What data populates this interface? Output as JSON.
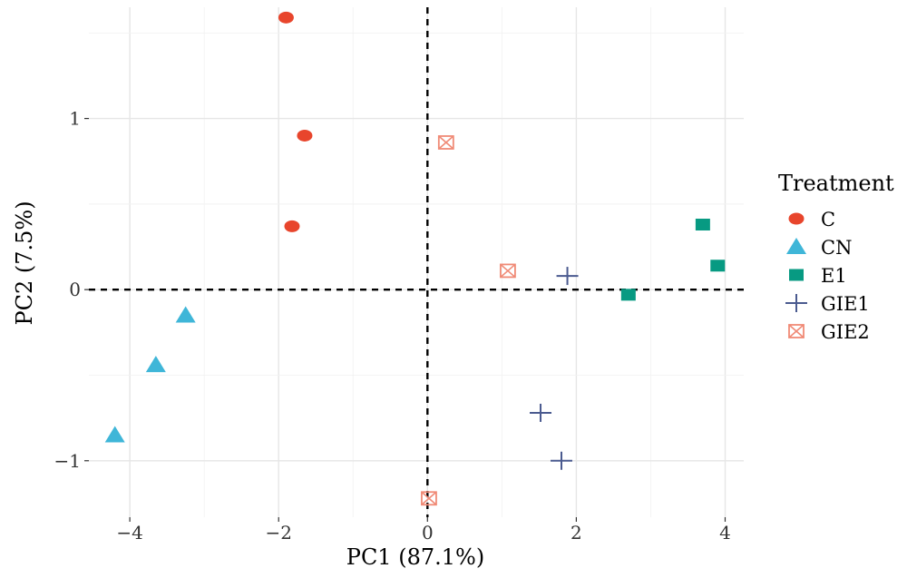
{
  "chart_data": {
    "type": "scatter",
    "title": "",
    "xlabel": "PC1 (87.1%)",
    "ylabel": "PC2 (7.5%)",
    "xlim": [
      -4.55,
      4.25
    ],
    "ylim": [
      -1.33,
      1.65
    ],
    "xticks": [
      -4,
      -2,
      0,
      2,
      4
    ],
    "xtick_labels": [
      "−4",
      "−2",
      "0",
      "2",
      "4"
    ],
    "yticks": [
      -1,
      0,
      1
    ],
    "ytick_labels": [
      "−1",
      "0",
      "1"
    ],
    "grid": true,
    "reference_lines": {
      "x": 0,
      "y": 0,
      "style": "dashed"
    },
    "legend": {
      "title": "Treatment",
      "position": "right"
    },
    "series": [
      {
        "name": "C",
        "marker": "circle",
        "color": "#E8452C",
        "points": [
          [
            -1.9,
            1.59
          ],
          [
            -1.65,
            0.9
          ],
          [
            -1.82,
            0.37
          ]
        ]
      },
      {
        "name": "CN",
        "marker": "triangle",
        "color": "#3FB6D8",
        "points": [
          [
            -3.25,
            -0.15
          ],
          [
            -3.65,
            -0.44
          ],
          [
            -4.2,
            -0.85
          ]
        ]
      },
      {
        "name": "E1",
        "marker": "square",
        "color": "#079A82",
        "points": [
          [
            3.7,
            0.38
          ],
          [
            3.9,
            0.14
          ],
          [
            2.7,
            -0.03
          ]
        ]
      },
      {
        "name": "GIE1",
        "marker": "plus",
        "color": "#4A5A8F",
        "points": [
          [
            1.88,
            0.08
          ],
          [
            1.52,
            -0.72
          ],
          [
            1.8,
            -1.0
          ]
        ]
      },
      {
        "name": "GIE2",
        "marker": "boxed-x",
        "color": "#F08A76",
        "points": [
          [
            0.25,
            0.86
          ],
          [
            1.08,
            0.11
          ],
          [
            0.02,
            -1.22
          ]
        ]
      }
    ]
  }
}
